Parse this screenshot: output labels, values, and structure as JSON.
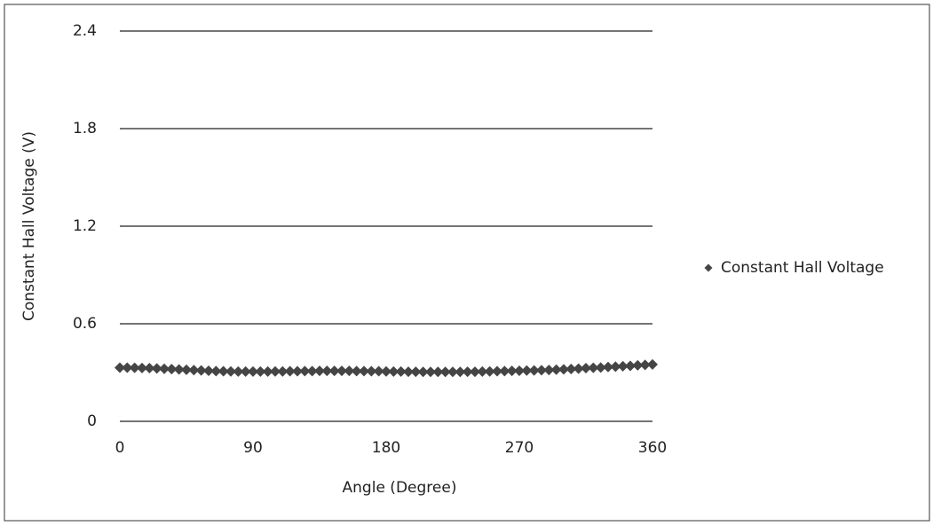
{
  "chart_data": {
    "type": "scatter",
    "x_label": "Angle (Degree)",
    "y_label": "Constant Hall Voltage (V)",
    "x": [
      0,
      5,
      10,
      15,
      20,
      25,
      30,
      35,
      40,
      45,
      50,
      55,
      60,
      65,
      70,
      75,
      80,
      85,
      90,
      95,
      100,
      105,
      110,
      115,
      120,
      125,
      130,
      135,
      140,
      145,
      150,
      155,
      160,
      165,
      170,
      175,
      180,
      185,
      190,
      195,
      200,
      205,
      210,
      215,
      220,
      225,
      230,
      235,
      240,
      245,
      250,
      255,
      260,
      265,
      270,
      275,
      280,
      285,
      290,
      295,
      300,
      305,
      310,
      315,
      320,
      325,
      330,
      335,
      340,
      345,
      350,
      355,
      360
    ],
    "series": [
      {
        "name": "Constant Hall Voltage",
        "color": "#454545",
        "values": [
          0.33,
          0.33,
          0.329,
          0.328,
          0.327,
          0.325,
          0.323,
          0.321,
          0.319,
          0.317,
          0.315,
          0.313,
          0.311,
          0.309,
          0.308,
          0.307,
          0.306,
          0.306,
          0.306,
          0.306,
          0.306,
          0.307,
          0.307,
          0.308,
          0.308,
          0.309,
          0.309,
          0.31,
          0.31,
          0.31,
          0.31,
          0.31,
          0.309,
          0.309,
          0.308,
          0.308,
          0.307,
          0.306,
          0.306,
          0.305,
          0.305,
          0.304,
          0.304,
          0.304,
          0.304,
          0.304,
          0.304,
          0.305,
          0.305,
          0.306,
          0.307,
          0.308,
          0.309,
          0.31,
          0.311,
          0.312,
          0.313,
          0.314,
          0.316,
          0.318,
          0.32,
          0.322,
          0.324,
          0.327,
          0.329,
          0.331,
          0.334,
          0.336,
          0.339,
          0.341,
          0.344,
          0.347,
          0.35
        ]
      }
    ],
    "xlim": [
      0,
      360
    ],
    "xticks": [
      0,
      90,
      180,
      270,
      360
    ],
    "ylim": [
      0,
      2.4
    ],
    "yticks": [
      0,
      0.6,
      1.2,
      1.8,
      2.4
    ],
    "grid": true,
    "legend": "right"
  }
}
